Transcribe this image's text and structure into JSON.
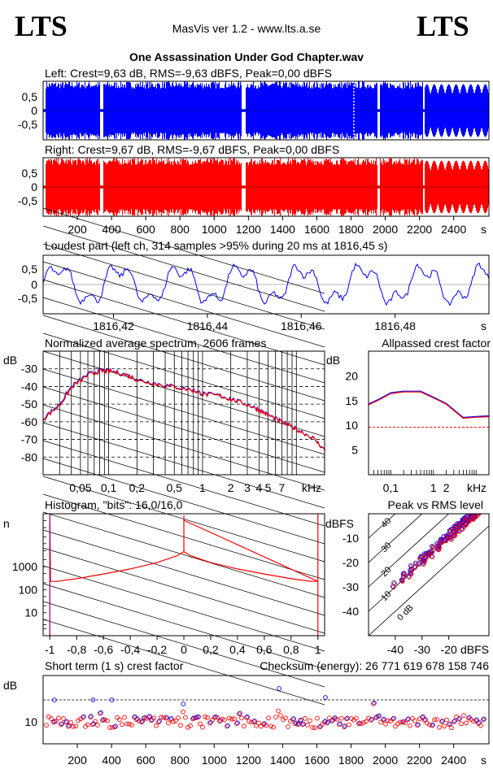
{
  "header": {
    "logo_left": "LTS",
    "logo_right": "LTS",
    "version": "MasVis ver 1.2 - www.lts.a.se",
    "file_title": "One Assassination Under God Chapter.wav"
  },
  "colors": {
    "left": "#0000ff",
    "right": "#ff0000",
    "avg": "#ff0000",
    "overlay": "#0000ff"
  },
  "chart_data": [
    {
      "id": "left-waveform",
      "type": "area",
      "title": "Left: Crest=9,63 dB, RMS=-9,63 dBFS, Peak=0,00 dBFS",
      "yticks": [
        "0,5",
        "0",
        "-0,5"
      ],
      "ylim": [
        -1,
        1
      ],
      "xlim": [
        0,
        2606
      ],
      "gaps_s": [
        [
          0,
          10
        ],
        [
          330,
          350
        ],
        [
          1160,
          1180
        ],
        [
          1950,
          1965
        ],
        [
          2220,
          2230
        ]
      ],
      "marker_s": 1816.45
    },
    {
      "id": "right-waveform",
      "type": "area",
      "title": "Right: Crest=9,67 dB, RMS=-9,67 dBFS, Peak=0,00 dBFS",
      "yticks": [
        "0,5",
        "0",
        "-0,5"
      ],
      "ylim": [
        -1,
        1
      ],
      "xlim": [
        0,
        2606
      ],
      "xticks": [
        "200",
        "400",
        "600",
        "800",
        "1000",
        "1200",
        "1400",
        "1600",
        "1800",
        "2000",
        "2200",
        "2400"
      ],
      "xunit": "s"
    },
    {
      "id": "loudest-part",
      "type": "line",
      "title": "Loudest part (left  ch, 314 samples >95% during 20 ms at 1816,45 s)",
      "yticks": [
        "0,5",
        "0",
        "-0,5"
      ],
      "ylim": [
        -1,
        1
      ],
      "xlim": [
        1816.405,
        1816.5
      ],
      "xticks": [
        "1816,42",
        "1816,44",
        "1816,46",
        "1816,48"
      ],
      "xunit": "s"
    },
    {
      "id": "avg-spectrum",
      "type": "line",
      "title": "Normalized average spectrum, 2606 frames",
      "ylabel": "dB",
      "yticks": [
        "-30",
        "-40",
        "-50",
        "-60",
        "-70",
        "-80"
      ],
      "ylim": [
        -90,
        -20
      ],
      "xlim": [
        0.02,
        20
      ],
      "xticks": [
        "0,05",
        "0,1",
        "0,2",
        "0,5",
        "1",
        "2",
        "3",
        "4",
        "5",
        "7"
      ],
      "xunit": "kHz",
      "x": [
        0.02,
        0.03,
        0.04,
        0.06,
        0.08,
        0.1,
        0.15,
        0.2,
        0.3,
        0.5,
        0.8,
        1,
        1.5,
        2,
        3,
        4,
        5,
        7,
        10,
        15,
        20
      ],
      "y": [
        -58,
        -50,
        -40,
        -33,
        -31,
        -31,
        -33,
        -36,
        -38,
        -40,
        -42,
        -44,
        -45,
        -47,
        -50,
        -53,
        -56,
        -60,
        -64,
        -69,
        -76
      ]
    },
    {
      "id": "allpassed-crest",
      "type": "line",
      "title": "Allpassed crest factor",
      "ylabel": "dB",
      "yticks": [
        "20",
        "15",
        "10",
        "5"
      ],
      "ylim": [
        0,
        25
      ],
      "xlim": [
        0.03,
        20
      ],
      "xticks": [
        "0,1",
        "1",
        "2",
        "kHz"
      ],
      "reference_db": 9.6,
      "x": [
        0.03,
        0.05,
        0.1,
        0.2,
        0.5,
        1,
        2,
        5,
        10,
        20
      ],
      "y": [
        14.3,
        15.2,
        16.6,
        16.9,
        16.9,
        15.7,
        14.4,
        11.6,
        11.8,
        11.9
      ]
    },
    {
      "id": "histogram",
      "type": "line",
      "title": "Histogram, \"bits\": 16,0/16,0",
      "ylabel": "n",
      "yticks": [
        "1000",
        "100",
        "10"
      ],
      "xlim": [
        -1.05,
        1.05
      ],
      "xticks": [
        "-1",
        "-0,8",
        "-0,6",
        "-0,4",
        "-0,2",
        "0",
        "0,2",
        "0,4",
        "0,6",
        "0,8",
        "1"
      ],
      "x": [
        -1,
        -0.95,
        -0.8,
        -0.6,
        -0.4,
        -0.2,
        -0.05,
        0,
        0.05,
        0.2,
        0.4,
        0.6,
        0.8,
        0.95,
        1
      ],
      "y": [
        230,
        230,
        300,
        480,
        800,
        1500,
        3000,
        4500,
        3000,
        1500,
        800,
        480,
        300,
        230,
        230
      ]
    },
    {
      "id": "peak-vs-rms",
      "type": "scatter",
      "title": "Peak vs RMS level",
      "ylabel": "dBFS",
      "xlabel": "dBFS",
      "yticks": [
        "-10",
        "-20",
        "-30",
        "-40"
      ],
      "xticks": [
        "-40",
        "-30",
        "-20"
      ],
      "xlim": [
        -50,
        -5
      ],
      "ylim": [
        -50,
        0
      ],
      "diag_labels": [
        "40",
        "30",
        "20",
        "10",
        "0 dB"
      ]
    },
    {
      "id": "short-term-crest",
      "type": "scatter",
      "title": "Short term (1 s) crest factor",
      "checksum_label": "Checksum (energy):  26 771 619 678 158 746",
      "ylabel": "dB",
      "yticks": [
        "10"
      ],
      "xlim": [
        0,
        2606
      ],
      "xticks": [
        "200",
        "400",
        "600",
        "800",
        "1000",
        "1200",
        "1400",
        "1600",
        "1800",
        "2000",
        "2200",
        "2400"
      ],
      "xunit": "s"
    }
  ]
}
